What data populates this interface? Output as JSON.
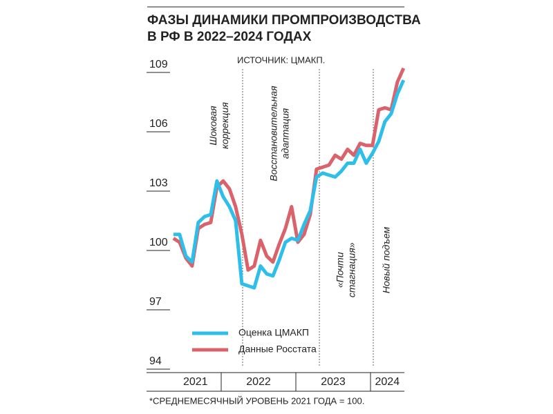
{
  "chart_data": {
    "type": "line",
    "title": [
      "ФАЗЫ ДИНАМИКИ ПРОМПРОИЗВОДСТВА",
      "В РФ В 2022–2024 ГОДАХ"
    ],
    "source": "ИСТОЧНИК: ЦМАКП.",
    "footnote": "*СРЕДНЕМЕСЯЧНЫЙ УРОВЕНЬ 2021 ГОДА = 100.",
    "x": [
      2021.36,
      2021.443,
      2021.527,
      2021.61,
      2021.693,
      2021.777,
      2021.86,
      2021.943,
      2022.027,
      2022.11,
      2022.193,
      2022.277,
      2022.36,
      2022.443,
      2022.527,
      2022.61,
      2022.693,
      2022.777,
      2022.86,
      2022.943,
      2023.027,
      2023.11,
      2023.193,
      2023.277,
      2023.36,
      2023.443,
      2023.527,
      2023.61,
      2023.693,
      2023.777,
      2023.86,
      2023.943,
      2024.027,
      2024.11,
      2024.193,
      2024.277,
      2024.36,
      2024.443
    ],
    "series": [
      {
        "name": "Оценка ЦМАКП",
        "color": "#2ebeea",
        "values": [
          100.5,
          100.5,
          99.4,
          99.1,
          101.1,
          101.4,
          101.5,
          103.2,
          102.4,
          101.9,
          101.2,
          98.0,
          97.9,
          97.8,
          98.9,
          98.5,
          98.4,
          99.2,
          100.1,
          100.3,
          100.2,
          101.0,
          101.7,
          103.4,
          103.6,
          103.5,
          103.4,
          103.7,
          104.1,
          104.1,
          104.8,
          104.1,
          104.6,
          105.2,
          106.2,
          106.6,
          107.6,
          108.3
        ]
      },
      {
        "name": "Данные Росстата",
        "color": "#d9626b",
        "values": [
          100.3,
          100.1,
          99.3,
          98.9,
          100.8,
          101.0,
          101.1,
          102.9,
          103.2,
          102.8,
          101.9,
          100.5,
          98.7,
          98.9,
          100.2,
          99.4,
          99.1,
          100.0,
          100.8,
          101.9,
          100.1,
          100.5,
          101.5,
          103.8,
          103.9,
          104.0,
          104.5,
          104.3,
          104.8,
          104.5,
          105.1,
          105.0,
          105.0,
          106.8,
          106.9,
          106.8,
          108.2,
          108.9
        ]
      }
    ],
    "xlim": [
      2021.31,
      2024.45
    ],
    "xticks": [
      {
        "value": 2021,
        "label": "2021"
      },
      {
        "value": 2022,
        "label": "2022"
      },
      {
        "value": 2023,
        "label": "2023"
      },
      {
        "value": 2024,
        "label": "2024"
      }
    ],
    "ylim": [
      94,
      109
    ],
    "yticks": [
      94,
      97,
      100,
      103,
      106,
      109
    ],
    "phase_lines": [
      2022.287,
      2023.315,
      2024.037
    ],
    "phases": [
      {
        "x": 2021.98,
        "y": 106,
        "lines": [
          "Шоковая",
          "коррекция"
        ]
      },
      {
        "x": 2022.79,
        "y": 105.6,
        "lines": [
          "Восстановительная",
          "адаптация"
        ]
      },
      {
        "x": 2023.68,
        "y": 98.7,
        "lines": [
          "«Почти",
          "стагнация»"
        ]
      },
      {
        "x": 2024.22,
        "y": 99.2,
        "lines": [
          "Новый подъем"
        ]
      }
    ]
  }
}
